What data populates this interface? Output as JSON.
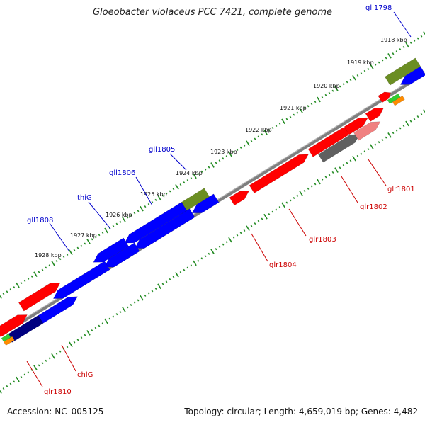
{
  "title": "Gloeobacter violaceus PCC 7421, complete genome",
  "footer": {
    "accession": "Accession: NC_005125",
    "summary": "Topology: circular; Length: 4,659,019 bp; Genes: 4,482"
  },
  "kbp_ticks": [
    "1918 kbp",
    "1919 kbp",
    "1920 kbp",
    "1921 kbp",
    "1922 kbp",
    "1923 kbp",
    "1924 kbp",
    "1925 kbp",
    "1926 kbp",
    "1927 kbp",
    "1928 kbp"
  ],
  "gene_labels": {
    "top": [
      "gll1798",
      "gll1805",
      "gll1806",
      "thiG",
      "gll1808"
    ],
    "bottom": [
      "glr1801",
      "glr1802",
      "glr1803",
      "glr1804",
      "chlG",
      "glr1810"
    ]
  },
  "colors": {
    "minus_strand": "#0000ff",
    "plus_strand": "#ff0000",
    "rna": "#6b8e23",
    "backbone": "#808080",
    "ticks": "#228b22"
  }
}
